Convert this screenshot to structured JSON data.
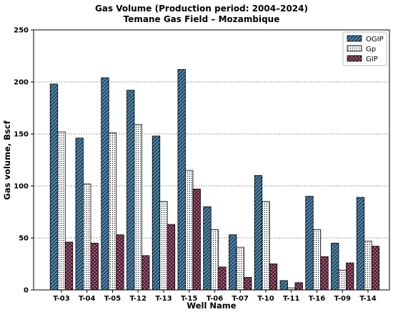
{
  "chart_data": {
    "type": "bar",
    "title": "Gas Volume (Production period: 2004–2024)",
    "subtitle": "Temane Gas Field – Mozambique",
    "xlabel": "Well Name",
    "ylabel": "Gas volume, Bscf",
    "ylim": [
      0,
      250
    ],
    "yticks": [
      0,
      50,
      100,
      150,
      200,
      250
    ],
    "grid": true,
    "legend_position": "top-right",
    "categories": [
      "T-03",
      "T-04",
      "T-05",
      "T-12",
      "T-13",
      "T-15",
      "T-06",
      "T-07",
      "T-10",
      "T-11",
      "T-16",
      "T-09",
      "T-14"
    ],
    "series": [
      {
        "name": "OGIP",
        "color": "#4a86ad",
        "pattern": "diagonal-hatch",
        "values": [
          198,
          146,
          204,
          192,
          148,
          212,
          80,
          53,
          110,
          9,
          90,
          45,
          89
        ]
      },
      {
        "name": "Gp",
        "color": "#ffffff",
        "pattern": "dots",
        "values": [
          152,
          102,
          151,
          159,
          85,
          115,
          58,
          41,
          85,
          2,
          58,
          19,
          47
        ]
      },
      {
        "name": "GIP",
        "color": "#b05a7a",
        "pattern": "cross-hatch",
        "values": [
          46,
          45,
          53,
          33,
          63,
          97,
          22,
          12,
          25,
          7,
          32,
          26,
          42
        ]
      }
    ]
  }
}
